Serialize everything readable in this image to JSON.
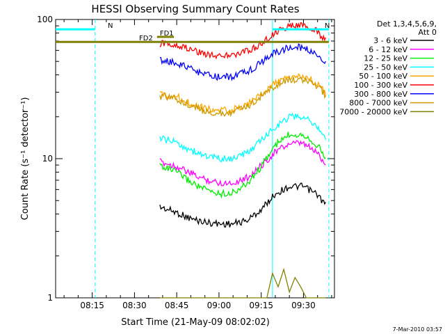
{
  "chart_data": {
    "type": "line",
    "title": "HESSI Observing Summary Count Rates",
    "xlabel": "Start Time (21-May-09 08:02:02)",
    "ylabel": "Count Rate (s⁻¹ detector⁻¹)",
    "xlim": [
      "08:02",
      "09:41"
    ],
    "ylim": [
      1,
      100
    ],
    "yscale": "log",
    "x_ticks": [
      "08:15",
      "08:30",
      "08:45",
      "09:00",
      "09:15",
      "09:30"
    ],
    "y_ticks": [
      "1",
      "10",
      "100"
    ],
    "grid": false,
    "legend": {
      "position": "right",
      "header_line1": "Det 1,3,4,5,6,9,",
      "header_line2": "Att 0"
    },
    "series": [
      {
        "name": "3 - 6 keV",
        "color": "#000000",
        "x": [
          "08:39",
          "08:45",
          "08:50",
          "08:55",
          "09:00",
          "09:05",
          "09:10",
          "09:15",
          "09:20",
          "09:25",
          "09:30",
          "09:35",
          "09:38"
        ],
        "y": [
          4.5,
          4.1,
          3.7,
          3.5,
          3.4,
          3.4,
          3.6,
          4.3,
          5.6,
          6.3,
          6.3,
          5.5,
          4.6
        ]
      },
      {
        "name": "6 - 12 keV",
        "color": "#ff00ff",
        "x": [
          "08:39",
          "08:45",
          "08:50",
          "08:55",
          "09:00",
          "09:05",
          "09:10",
          "09:15",
          "09:20",
          "09:25",
          "09:30",
          "09:35",
          "09:38"
        ],
        "y": [
          9.5,
          8.8,
          7.8,
          7.1,
          6.7,
          6.7,
          7.3,
          8.9,
          11.2,
          12.8,
          12.8,
          11.0,
          9.0
        ]
      },
      {
        "name": "12 - 25 keV",
        "color": "#00ee00",
        "x": [
          "08:39",
          "08:45",
          "08:50",
          "08:55",
          "09:00",
          "09:05",
          "09:10",
          "09:15",
          "09:20",
          "09:25",
          "09:30",
          "09:35",
          "09:38"
        ],
        "y": [
          9.0,
          8.0,
          6.8,
          6.0,
          5.6,
          5.7,
          6.6,
          8.8,
          12.5,
          15.0,
          15.0,
          12.5,
          10.0
        ]
      },
      {
        "name": "25 - 50 keV",
        "color": "#00ffff",
        "x": [
          "08:39",
          "08:45",
          "08:50",
          "08:55",
          "09:00",
          "09:05",
          "09:10",
          "09:15",
          "09:20",
          "09:25",
          "09:30",
          "09:35",
          "09:38"
        ],
        "y": [
          14.0,
          13.0,
          11.5,
          10.5,
          10.0,
          10.0,
          11.0,
          13.5,
          17.0,
          20.0,
          20.0,
          17.0,
          13.5
        ]
      },
      {
        "name": "50 - 100 keV",
        "color": "#ffa500",
        "x": [
          "08:39",
          "08:45",
          "08:50",
          "08:55",
          "09:00",
          "09:05",
          "09:10",
          "09:15",
          "09:20",
          "09:25",
          "09:30",
          "09:35",
          "09:38"
        ],
        "y": [
          29.0,
          28.0,
          25.0,
          23.0,
          22.0,
          22.5,
          24.5,
          29.0,
          35.0,
          38.5,
          38.5,
          35.0,
          29.0
        ]
      },
      {
        "name": "100 - 300 keV",
        "color": "#ff0000",
        "x": [
          "08:39",
          "08:45",
          "08:50",
          "08:55",
          "09:00",
          "09:05",
          "09:10",
          "09:15",
          "09:20",
          "09:25",
          "09:30",
          "09:35",
          "09:38"
        ],
        "y": [
          67.0,
          66.0,
          61.0,
          57.0,
          55.0,
          55.5,
          59.0,
          67.0,
          80.0,
          90.0,
          90.0,
          82.0,
          70.0
        ]
      },
      {
        "name": "300 - 800 keV",
        "color": "#0000ff",
        "x": [
          "08:39",
          "08:45",
          "08:50",
          "08:55",
          "09:00",
          "09:05",
          "09:10",
          "09:15",
          "09:20",
          "09:25",
          "09:30",
          "09:35",
          "09:38"
        ],
        "y": [
          51.0,
          49.0,
          44.0,
          40.0,
          38.5,
          39.0,
          42.0,
          49.0,
          58.0,
          63.0,
          63.0,
          56.0,
          48.0
        ]
      },
      {
        "name": "800 - 7000 keV",
        "color": "#cc9900",
        "x": [
          "08:39",
          "08:45",
          "08:50",
          "08:55",
          "09:00",
          "09:05",
          "09:10",
          "09:15",
          "09:20",
          "09:25",
          "09:30",
          "09:35",
          "09:38"
        ],
        "y": [
          28.0,
          27.0,
          24.0,
          22.0,
          21.0,
          21.5,
          23.5,
          28.0,
          33.5,
          37.0,
          37.0,
          33.5,
          28.0
        ]
      },
      {
        "name": "7000 - 20000 keV",
        "color": "#808000",
        "x": [
          "08:39",
          "09:17",
          "09:19",
          "09:21",
          "09:23",
          "09:25",
          "09:27",
          "09:29",
          "09:31",
          "09:33",
          "09:35",
          "09:38"
        ],
        "y": [
          1.0,
          1.0,
          1.5,
          1.2,
          1.6,
          1.1,
          1.4,
          1.2,
          1.0,
          1.0,
          1.0,
          1.0
        ]
      }
    ],
    "flags": [
      {
        "label": "N",
        "color": "#00ffff",
        "x_start": "08:02",
        "x_end": "08:16",
        "y": 85
      },
      {
        "label": "N",
        "color": "#00ffff",
        "x_start": "09:19",
        "x_end": "09:39",
        "y": 85
      },
      {
        "label": "FD2",
        "color": "#808000",
        "x_start": "08:02",
        "x_end": "09:39",
        "y": 69
      },
      {
        "label": "FD1",
        "color": "#808000",
        "x_start": "08:38",
        "x_end": "08:44",
        "y": 75
      }
    ],
    "vlines": [
      {
        "color": "#00ffff",
        "x": "08:16",
        "style": "dashed"
      },
      {
        "color": "#00ffff",
        "x": "09:19",
        "style": "solid"
      },
      {
        "color": "#00ffff",
        "x": "09:39",
        "style": "dashed"
      }
    ],
    "footer_timestamp": "7-Mar-2010 03:57"
  }
}
